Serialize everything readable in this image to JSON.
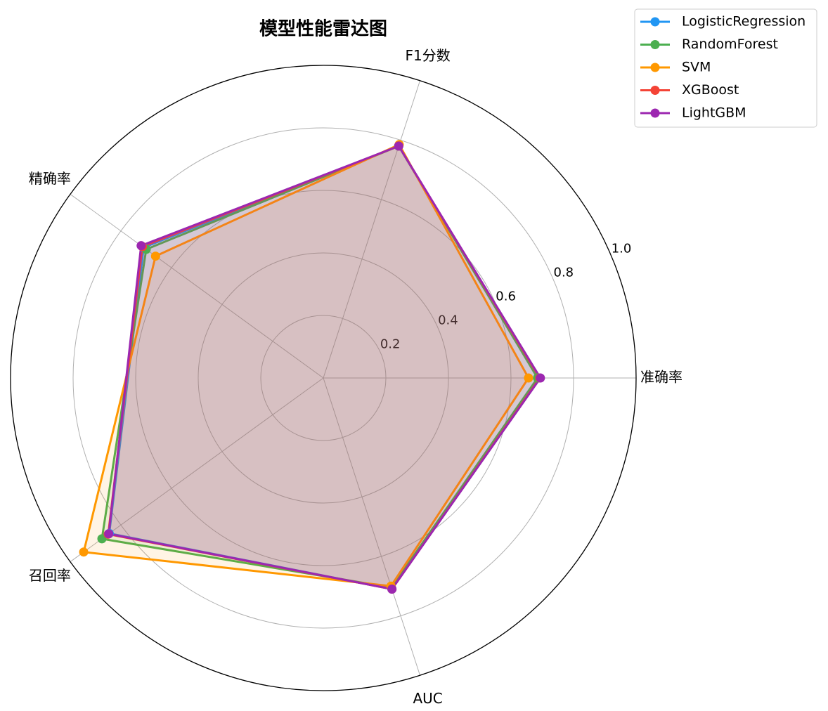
{
  "chart_data": {
    "type": "radar",
    "title": "模型性能雷达图",
    "categories": [
      "准确率",
      "F1分数",
      "精确率",
      "召回率",
      "AUC"
    ],
    "series": [
      {
        "name": "LogisticRegression",
        "color": "#2196F3",
        "values": [
          0.688,
          0.78,
          0.71,
          0.846,
          0.71
        ]
      },
      {
        "name": "RandomForest",
        "color": "#4CAF50",
        "values": [
          0.685,
          0.78,
          0.7,
          0.875,
          0.705
        ]
      },
      {
        "name": "SVM",
        "color": "#FF9800",
        "values": [
          0.656,
          0.785,
          0.663,
          0.947,
          0.7
        ]
      },
      {
        "name": "XGBoost",
        "color": "#F44336",
        "values": [
          0.692,
          0.78,
          0.715,
          0.85,
          0.71
        ]
      },
      {
        "name": "LightGBM",
        "color": "#9C27B0",
        "values": [
          0.694,
          0.78,
          0.72,
          0.848,
          0.71
        ]
      }
    ],
    "rlim": [
      0,
      1
    ],
    "rticks": [
      0.2,
      0.4,
      0.6,
      0.8,
      {
        "value": 1,
        "label": "1.0"
      }
    ],
    "grid": true,
    "legend": "upper right"
  }
}
